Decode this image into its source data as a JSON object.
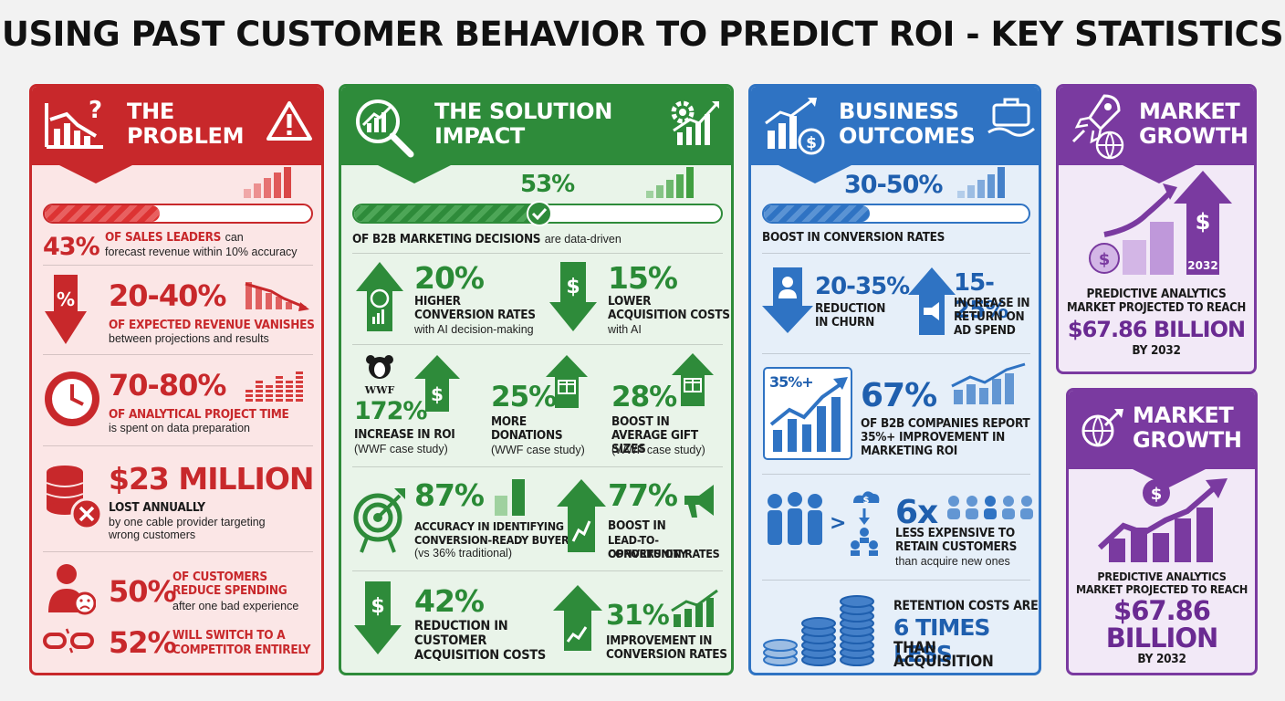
{
  "title": "USING PAST CUSTOMER BEHAVIOR TO PREDICT ROI - KEY STATISTICS",
  "colors": {
    "red": "#c8282b",
    "green": "#2e8b3a",
    "blue": "#2f73c3",
    "purple": "#7a3aa0"
  },
  "problem": {
    "title_line1": "THE",
    "title_line2": "PROBLEM",
    "icons": [
      "chart-question-icon",
      "warning-icon"
    ],
    "s1": {
      "value": "43%",
      "caption": "OF SALES LEADERS",
      "caption_tail": "can",
      "sub": "forecast revenue within 10% accuracy",
      "progress": 43
    },
    "s2": {
      "value": "20-40%",
      "caption": "OF EXPECTED REVENUE VANISHES",
      "sub": "between projections and results"
    },
    "s3": {
      "value": "70-80%",
      "caption": "OF ANALYTICAL PROJECT TIME",
      "sub": "is spent on data preparation"
    },
    "s4": {
      "value": "$23 MILLION",
      "caption": "LOST ANNUALLY",
      "sub_line1": "by one cable provider targeting",
      "sub_line2": "wrong customers"
    },
    "s5": {
      "value": "50%",
      "caption_line1": "OF CUSTOMERS",
      "caption_line2": "REDUCE SPENDING",
      "sub": "after one bad experience"
    },
    "s6": {
      "value": "52%",
      "caption_line1": "WILL SWITCH TO A",
      "caption_line2": "COMPETITOR ENTIRELY"
    }
  },
  "solution": {
    "title_line1": "THE SOLUTION",
    "title_line2": "IMPACT",
    "top": {
      "value": "53%",
      "caption": "OF B2B MARKETING DECISIONS",
      "caption_tail": "are data-driven",
      "progress": 53
    },
    "a": {
      "value": "20%",
      "caption_line1": "HIGHER",
      "caption_line2": "CONVERSION RATES",
      "sub": "with AI decision-making"
    },
    "b": {
      "value": "15%",
      "caption_line1": "LOWER",
      "caption_line2": "ACQUISITION COSTS",
      "sub": "with AI"
    },
    "wwf_logo": "WWF",
    "c": {
      "value": "172%",
      "caption": "INCREASE IN ROI",
      "sub": "(WWF case study)"
    },
    "d": {
      "value": "25%",
      "caption_line1": "MORE",
      "caption_line2": "DONATIONS",
      "sub": "(WWF case study)"
    },
    "e": {
      "value": "28%",
      "caption_line1": "BOOST IN",
      "caption_line2": "AVERAGE GIFT SIZES",
      "sub": "(WWF case study)"
    },
    "f": {
      "value": "87%",
      "caption_line1": "ACCURACY IN IDENTIFYING",
      "caption_line2": "CONVERSION-READY BUYERS",
      "sub": "(vs 36% traditional)"
    },
    "g": {
      "value": "77%",
      "caption_line1": "BOOST IN",
      "caption_line2": "LEAD-TO-OPPORTUNITY",
      "caption_line3": "CONVERSION RATES"
    },
    "h": {
      "value": "42%",
      "caption_line1": "REDUCTION IN",
      "caption_line2": "CUSTOMER",
      "caption_line3": "ACQUISITION COSTS"
    },
    "i": {
      "value": "31%",
      "caption_line1": "IMPROVEMENT IN",
      "caption_line2": "CONVERSION RATES"
    }
  },
  "outcomes": {
    "title_line1": "BUSINESS",
    "title_line2": "OUTCOMES",
    "top": {
      "value": "30-50%",
      "caption": "BOOST IN CONVERSION RATES",
      "progress": 40
    },
    "a": {
      "value": "20-35%",
      "caption_line1": "REDUCTION",
      "caption_line2": "IN CHURN"
    },
    "b": {
      "value": "15-25%",
      "caption_line1": "INCREASE IN",
      "caption_line2": "RETURN ON",
      "caption_line3": "AD SPEND"
    },
    "c": {
      "chart_label": "35%+",
      "value": "67%",
      "caption_line1": "OF B2B COMPANIES REPORT",
      "caption_line2": "35%+ IMPROVEMENT IN",
      "caption_line3": "MARKETING ROI"
    },
    "d": {
      "value": "6x",
      "caption_line1": "LESS EXPENSIVE TO",
      "caption_line2": "RETAIN CUSTOMERS",
      "sub": "than acquire new ones"
    },
    "e": {
      "line1": "RETENTION COSTS ARE",
      "line2": "6 TIMES LESS",
      "line3": "THAN ACQUISITION"
    }
  },
  "market1": {
    "title_line1": "MARKET",
    "title_line2": "GROWTH",
    "arrow_label": "2032",
    "caption_line1": "PREDICTIVE ANALYTICS",
    "caption_line2": "MARKET PROJECTED TO REACH",
    "value": "$67.86 BILLION",
    "by": "BY 2032"
  },
  "market2": {
    "title_line1": "MARKET",
    "title_line2": "GROWTH",
    "caption_line1": "PREDICTIVE ANALYTICS",
    "caption_line2": "MARKET PROJECTED TO REACH",
    "value_line1": "$67.86",
    "value_line2": "BILLION",
    "by": "BY 2032"
  }
}
